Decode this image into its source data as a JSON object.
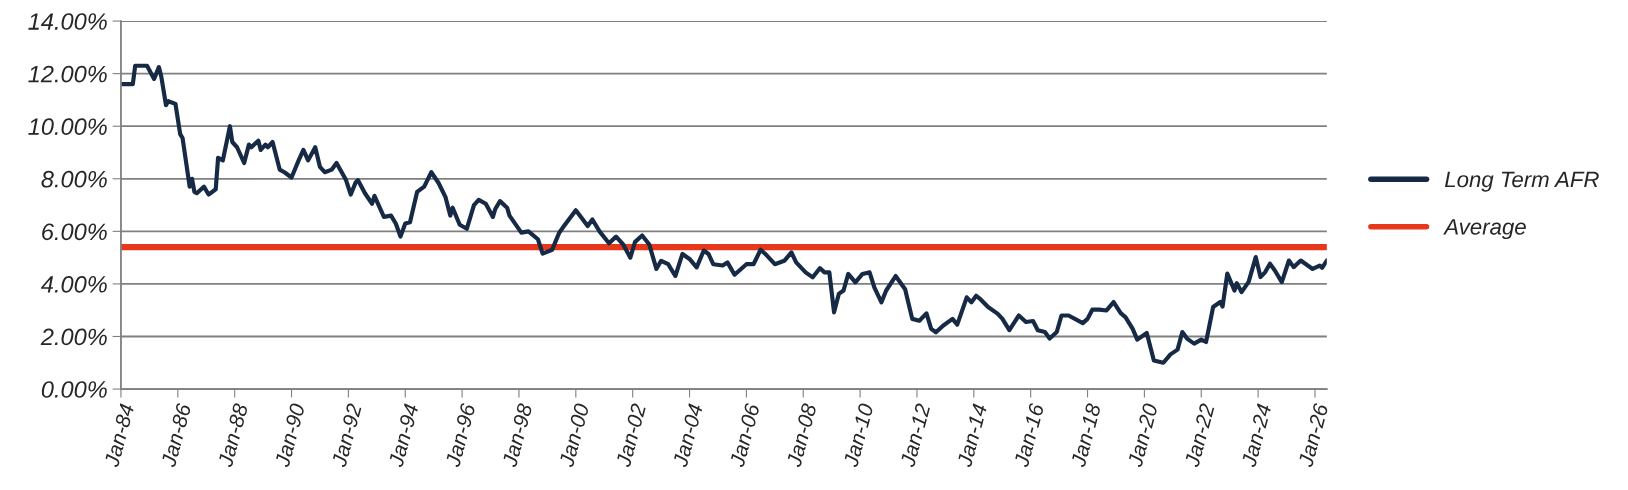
{
  "chart_data": {
    "type": "line",
    "x": [
      "1984-01",
      "1984-06",
      "1984-07",
      "1984-12",
      "1985-03",
      "1985-05",
      "1985-06",
      "1985-08",
      "1985-09",
      "1985-12",
      "1986-02",
      "1986-03",
      "1986-06",
      "1986-07",
      "1986-08",
      "1986-09",
      "1986-12",
      "1987-02",
      "1987-05",
      "1987-06",
      "1987-08",
      "1987-11",
      "1987-12",
      "1988-02",
      "1988-05",
      "1988-07",
      "1988-08",
      "1988-11",
      "1988-12",
      "1989-02",
      "1989-03",
      "1989-05",
      "1989-08",
      "1989-10",
      "1990-01",
      "1990-04",
      "1990-06",
      "1990-08",
      "1990-11",
      "1991-01",
      "1991-03",
      "1991-06",
      "1991-08",
      "1991-12",
      "1992-02",
      "1992-04",
      "1992-05",
      "1992-08",
      "1992-11",
      "1992-12",
      "1993-04",
      "1993-07",
      "1993-09",
      "1993-11",
      "1994-01",
      "1994-03",
      "1994-06",
      "1994-09",
      "1994-12",
      "1995-03",
      "1995-06",
      "1995-08",
      "1995-09",
      "1995-12",
      "1996-03",
      "1996-06",
      "1996-08",
      "1996-11",
      "1997-02",
      "1997-03",
      "1997-05",
      "1997-08",
      "1997-09",
      "1998-02",
      "1998-05",
      "1998-09",
      "1998-11",
      "1999-03",
      "1999-06",
      "1999-08",
      "2000-01",
      "2000-06",
      "2000-08",
      "2000-11",
      "2001-03",
      "2001-06",
      "2001-09",
      "2001-12",
      "2002-02",
      "2002-05",
      "2002-08",
      "2002-11",
      "2003-01",
      "2003-04",
      "2003-07",
      "2003-10",
      "2004-01",
      "2004-04",
      "2004-07",
      "2004-09",
      "2004-11",
      "2005-03",
      "2005-05",
      "2005-08",
      "2006-01",
      "2006-04",
      "2006-07",
      "2006-09",
      "2007-01",
      "2007-05",
      "2007-08",
      "2007-10",
      "2008-02",
      "2008-05",
      "2008-08",
      "2008-10",
      "2008-12",
      "2009-02",
      "2009-04",
      "2009-06",
      "2009-08",
      "2009-11",
      "2010-02",
      "2010-05",
      "2010-07",
      "2010-10",
      "2010-12",
      "2011-04",
      "2011-08",
      "2011-11",
      "2012-02",
      "2012-05",
      "2012-07",
      "2012-09",
      "2012-12",
      "2013-04",
      "2013-06",
      "2013-10",
      "2013-12",
      "2014-02",
      "2014-04",
      "2014-07",
      "2014-11",
      "2015-01",
      "2015-04",
      "2015-08",
      "2015-11",
      "2016-02",
      "2016-04",
      "2016-07",
      "2016-09",
      "2016-12",
      "2017-02",
      "2017-05",
      "2017-11",
      "2018-01",
      "2018-03",
      "2018-06",
      "2018-09",
      "2018-12",
      "2019-03",
      "2019-05",
      "2019-08",
      "2019-10",
      "2020-02",
      "2020-05",
      "2020-09",
      "2020-12",
      "2021-03",
      "2021-05",
      "2021-07",
      "2021-10",
      "2022-01",
      "2022-03",
      "2022-04",
      "2022-06",
      "2022-09",
      "2022-10",
      "2022-12",
      "2023-03",
      "2023-04",
      "2023-06",
      "2023-09",
      "2023-12",
      "2024-02",
      "2024-04",
      "2024-06",
      "2024-08",
      "2024-11",
      "2025-02",
      "2025-04",
      "2025-07",
      "2025-12",
      "2026-03",
      "2026-04",
      "2026-06"
    ],
    "series": [
      {
        "name": "Long Term AFR",
        "color": "#172a45",
        "values": [
          11.6,
          11.6,
          12.3,
          12.3,
          11.8,
          12.25,
          11.9,
          10.8,
          10.95,
          10.85,
          9.7,
          9.55,
          7.7,
          8.0,
          7.5,
          7.45,
          7.7,
          7.4,
          7.6,
          8.8,
          8.7,
          10.0,
          9.4,
          9.2,
          8.6,
          9.3,
          9.2,
          9.45,
          9.1,
          9.3,
          9.2,
          9.4,
          8.35,
          8.25,
          8.05,
          8.7,
          9.1,
          8.7,
          9.2,
          8.45,
          8.25,
          8.35,
          8.6,
          7.95,
          7.4,
          7.85,
          7.95,
          7.45,
          7.05,
          7.35,
          6.55,
          6.6,
          6.3,
          5.8,
          6.3,
          6.35,
          7.5,
          7.7,
          8.25,
          7.85,
          7.3,
          6.6,
          6.9,
          6.25,
          6.1,
          7.0,
          7.2,
          7.05,
          6.55,
          6.85,
          7.15,
          6.9,
          6.6,
          5.95,
          6.0,
          5.7,
          5.15,
          5.3,
          5.95,
          6.2,
          6.8,
          6.2,
          6.45,
          6.0,
          5.55,
          5.8,
          5.5,
          5.0,
          5.6,
          5.84,
          5.5,
          4.57,
          4.88,
          4.75,
          4.3,
          5.14,
          4.95,
          4.63,
          5.27,
          5.14,
          4.75,
          4.7,
          4.82,
          4.35,
          4.75,
          4.75,
          5.3,
          5.14,
          4.75,
          4.88,
          5.2,
          4.82,
          4.44,
          4.25,
          4.6,
          4.44,
          4.44,
          2.92,
          3.62,
          3.75,
          4.38,
          4.06,
          4.38,
          4.44,
          3.87,
          3.3,
          3.75,
          4.3,
          3.8,
          2.67,
          2.6,
          2.88,
          2.29,
          2.16,
          2.41,
          2.67,
          2.45,
          3.49,
          3.3,
          3.55,
          3.4,
          3.12,
          2.87,
          2.68,
          2.24,
          2.8,
          2.55,
          2.59,
          2.24,
          2.17,
          1.92,
          2.17,
          2.8,
          2.8,
          2.51,
          2.67,
          3.02,
          3.02,
          2.99,
          3.31,
          2.89,
          2.74,
          2.3,
          1.88,
          2.13,
          1.09,
          1.0,
          1.32,
          1.5,
          2.17,
          1.92,
          1.73,
          1.88,
          1.79,
          2.22,
          3.12,
          3.31,
          3.14,
          4.39,
          3.75,
          4.03,
          3.69,
          4.08,
          5.02,
          4.26,
          4.45,
          4.77,
          4.52,
          4.07,
          4.89,
          4.64,
          4.89,
          4.57,
          4.7,
          4.61,
          4.89
        ]
      },
      {
        "name": "Average",
        "color": "#e8381c",
        "x": [
          "1984-01",
          "2026-06"
        ],
        "values": [
          5.4,
          5.4
        ]
      }
    ],
    "xlim": [
      "1984-01",
      "2026-06"
    ],
    "xticks": [
      {
        "value": "1984-01",
        "label": "Jan-84"
      },
      {
        "value": "1986-01",
        "label": "Jan-86"
      },
      {
        "value": "1988-01",
        "label": "Jan-88"
      },
      {
        "value": "1990-01",
        "label": "Jan-90"
      },
      {
        "value": "1992-01",
        "label": "Jan-92"
      },
      {
        "value": "1994-01",
        "label": "Jan-94"
      },
      {
        "value": "1996-01",
        "label": "Jan-96"
      },
      {
        "value": "1998-01",
        "label": "Jan-98"
      },
      {
        "value": "2000-01",
        "label": "Jan-00"
      },
      {
        "value": "2002-01",
        "label": "Jan-02"
      },
      {
        "value": "2004-01",
        "label": "Jan-04"
      },
      {
        "value": "2006-01",
        "label": "Jan-06"
      },
      {
        "value": "2008-01",
        "label": "Jan-08"
      },
      {
        "value": "2010-01",
        "label": "Jan-10"
      },
      {
        "value": "2012-01",
        "label": "Jan-12"
      },
      {
        "value": "2014-01",
        "label": "Jan-14"
      },
      {
        "value": "2016-01",
        "label": "Jan-16"
      },
      {
        "value": "2018-01",
        "label": "Jan-18"
      },
      {
        "value": "2020-01",
        "label": "Jan-20"
      },
      {
        "value": "2022-01",
        "label": "Jan-22"
      },
      {
        "value": "2024-01",
        "label": "Jan-24"
      },
      {
        "value": "2026-01",
        "label": "Jan-26"
      }
    ],
    "ylim": [
      0,
      14
    ],
    "yticks": [
      {
        "value": 0,
        "label": "0.00%"
      },
      {
        "value": 2,
        "label": "2.00%"
      },
      {
        "value": 4,
        "label": "4.00%"
      },
      {
        "value": 6,
        "label": "6.00%"
      },
      {
        "value": 8,
        "label": "8.00%"
      },
      {
        "value": 10,
        "label": "10.00%"
      },
      {
        "value": 12,
        "label": "12.00%"
      },
      {
        "value": 14,
        "label": "14.00%"
      }
    ],
    "grid": "y",
    "legend": "right",
    "line_style": "solid",
    "marker": "none"
  }
}
